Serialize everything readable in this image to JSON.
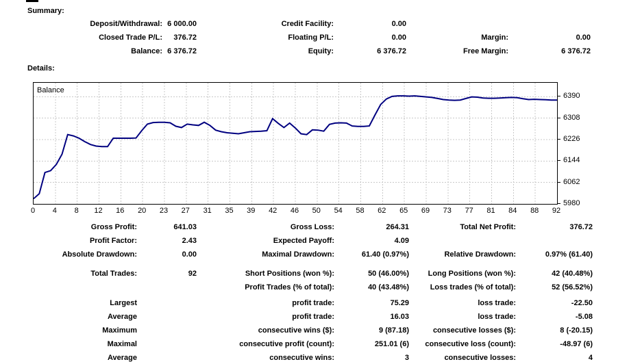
{
  "summary": {
    "title": "Summary:",
    "rows": [
      {
        "c1l": "Deposit/Withdrawal:",
        "c1v": "6 000.00",
        "c2l": "Credit Facility:",
        "c2v": "0.00",
        "c3l": "",
        "c3v": ""
      },
      {
        "c1l": "Closed Trade P/L:",
        "c1v": "376.72",
        "c2l": "Floating P/L:",
        "c2v": "0.00",
        "c3l": "Margin:",
        "c3v": "0.00"
      },
      {
        "c1l": "Balance:",
        "c1v": "6 376.72",
        "c2l": "Equity:",
        "c2v": "6 376.72",
        "c3l": "Free Margin:",
        "c3v": "6 376.72"
      }
    ]
  },
  "details": {
    "title": "Details:",
    "rows": [
      {
        "c1l": "Gross Profit:",
        "c1v": "641.03",
        "c2l": "Gross Loss:",
        "c2v": "264.31",
        "c3l": "Total Net Profit:",
        "c3v": "376.72"
      },
      {
        "c1l": "Profit Factor:",
        "c1v": "2.43",
        "c2l": "Expected Payoff:",
        "c2v": "4.09",
        "c3l": "",
        "c3v": ""
      },
      {
        "c1l": "Absolute Drawdown:",
        "c1v": "0.00",
        "c2l": "Maximal Drawdown:",
        "c2v": "61.40 (0.97%)",
        "c3l": "Relative Drawdown:",
        "c3v": "0.97% (61.40)"
      },
      {
        "c1l": "Total Trades:",
        "c1v": "92",
        "c2l": "Short Positions (won %):",
        "c2v": "50 (46.00%)",
        "c3l": "Long Positions (won %):",
        "c3v": "42 (40.48%)"
      },
      {
        "c1l": "",
        "c1v": "",
        "c2l": "Profit Trades (% of total):",
        "c2v": "40 (43.48%)",
        "c3l": "Loss trades (% of total):",
        "c3v": "52 (56.52%)"
      },
      {
        "c1l": "Largest",
        "c1v": "",
        "c2l": "profit trade:",
        "c2v": "75.29",
        "c3l": "loss trade:",
        "c3v": "-22.50"
      },
      {
        "c1l": "Average",
        "c1v": "",
        "c2l": "profit trade:",
        "c2v": "16.03",
        "c3l": "loss trade:",
        "c3v": "-5.08"
      },
      {
        "c1l": "Maximum",
        "c1v": "",
        "c2l": "consecutive wins ($):",
        "c2v": "9 (87.18)",
        "c3l": "consecutive losses ($):",
        "c3v": "8 (-20.15)"
      },
      {
        "c1l": "Maximal",
        "c1v": "",
        "c2l": "consecutive profit (count):",
        "c2v": "251.01 (6)",
        "c3l": "consecutive loss (count):",
        "c3v": "-48.97 (6)"
      },
      {
        "c1l": "Average",
        "c1v": "",
        "c2l": "consecutive wins:",
        "c2v": "3",
        "c3l": "consecutive losses:",
        "c3v": "4"
      }
    ]
  },
  "chart_data": {
    "type": "line",
    "legend": "Balance",
    "xlabel": "",
    "ylabel": "",
    "x_range": [
      0,
      92
    ],
    "ylim": [
      5980,
      6443
    ],
    "y_ticks": [
      6390,
      6308,
      6226,
      6144,
      6062,
      5980
    ],
    "x_tick_labels": [
      "0",
      "4",
      "8",
      "12",
      "16",
      "20",
      "23",
      "27",
      "31",
      "35",
      "39",
      "42",
      "46",
      "50",
      "54",
      "58",
      "62",
      "65",
      "69",
      "73",
      "77",
      "81",
      "84",
      "88",
      "92"
    ],
    "grid": true,
    "values": [
      6000,
      6019,
      6100,
      6107,
      6131,
      6170,
      6245,
      6240,
      6231,
      6218,
      6207,
      6201,
      6199,
      6199,
      6231,
      6231,
      6231,
      6231,
      6232,
      6260,
      6285,
      6291,
      6292,
      6292,
      6290,
      6277,
      6272,
      6285,
      6282,
      6280,
      6292,
      6280,
      6262,
      6256,
      6252,
      6250,
      6248,
      6252,
      6256,
      6257,
      6258,
      6260,
      6306,
      6288,
      6272,
      6289,
      6270,
      6248,
      6245,
      6263,
      6262,
      6258,
      6284,
      6289,
      6290,
      6289,
      6278,
      6276,
      6276,
      6278,
      6320,
      6360,
      6381,
      6391,
      6393,
      6393,
      6392,
      6393,
      6391,
      6389,
      6387,
      6383,
      6379,
      6377,
      6376,
      6377,
      6383,
      6389,
      6388,
      6385,
      6384,
      6384,
      6385,
      6386,
      6387,
      6386,
      6382,
      6379,
      6380,
      6379,
      6378,
      6377,
      6376.72
    ],
    "colors": {
      "line": "#000080",
      "grid": "#c8c8c8",
      "axis": "#000000",
      "background": "#ffffff",
      "text": "#000000"
    }
  }
}
